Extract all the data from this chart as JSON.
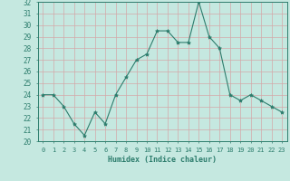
{
  "x": [
    0,
    1,
    2,
    3,
    4,
    5,
    6,
    7,
    8,
    9,
    10,
    11,
    12,
    13,
    14,
    15,
    16,
    17,
    18,
    19,
    20,
    21,
    22,
    23
  ],
  "y": [
    24.0,
    24.0,
    23.0,
    21.5,
    20.5,
    22.5,
    21.5,
    24.0,
    25.5,
    27.0,
    27.5,
    29.5,
    29.5,
    28.5,
    28.5,
    32.0,
    29.0,
    28.0,
    24.0,
    23.5,
    24.0,
    23.5,
    23.0,
    22.5
  ],
  "ylim": [
    20,
    32
  ],
  "yticks": [
    20,
    21,
    22,
    23,
    24,
    25,
    26,
    27,
    28,
    29,
    30,
    31,
    32
  ],
  "xlabel": "Humidex (Indice chaleur)",
  "line_color": "#2d7d6d",
  "marker_color": "#2d7d6d",
  "bg_color": "#c5e8e0",
  "grid_color": "#b8d8d0",
  "tick_label_color": "#2d7d6d",
  "xlabel_color": "#2d7d6d"
}
